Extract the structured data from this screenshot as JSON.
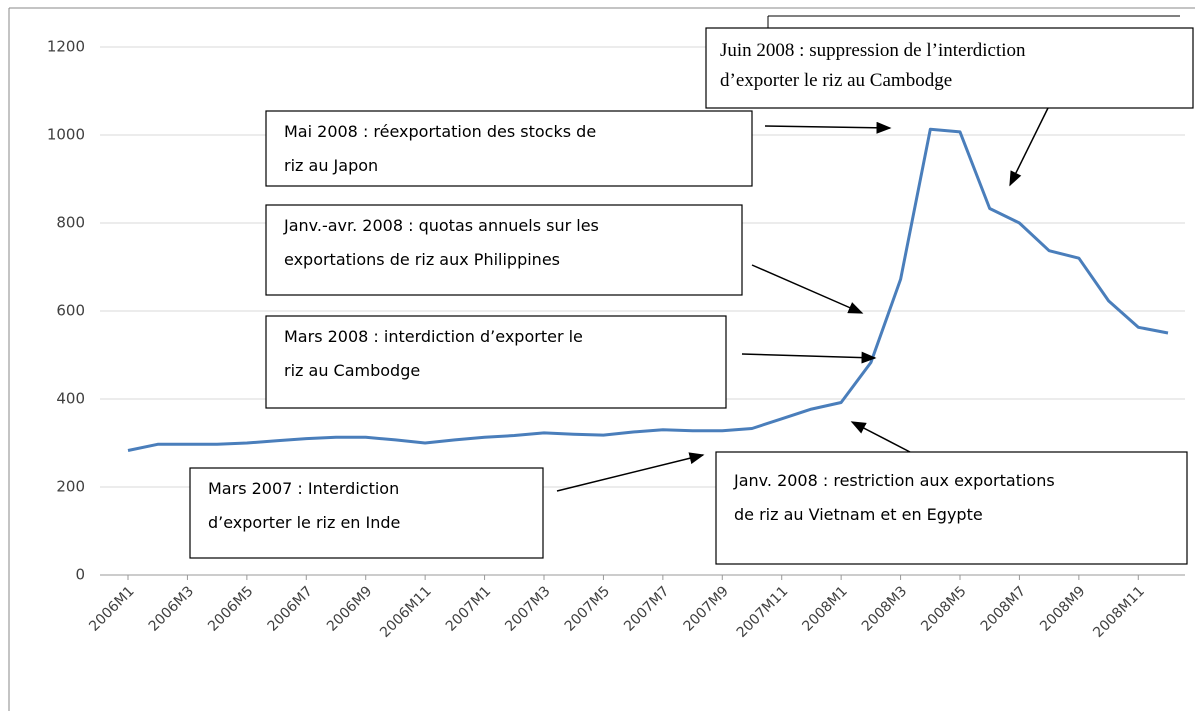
{
  "chart_data": {
    "type": "line",
    "categories": [
      "2006M1",
      null,
      "2006M3",
      null,
      "2006M5",
      null,
      "2006M7",
      null,
      "2006M9",
      null,
      "2006M11",
      null,
      "2007M1",
      null,
      "2007M3",
      null,
      "2007M5",
      null,
      "2007M7",
      null,
      "2007M9",
      null,
      "2007M11",
      null,
      "2008M1",
      null,
      "2008M3",
      null,
      "2008M5",
      null,
      "2008M7",
      null,
      "2008M9",
      null,
      "2008M11",
      null
    ],
    "series": [
      {
        "color": "#4a7ebb",
        "values": [
          283,
          297,
          297,
          297,
          300,
          305,
          310,
          313,
          313,
          307,
          300,
          307,
          313,
          317,
          323,
          320,
          318,
          325,
          330,
          328,
          328,
          333,
          355,
          377,
          392,
          483,
          672,
          1013,
          1007,
          833,
          800,
          737,
          720,
          623,
          563,
          550
        ]
      }
    ],
    "ylim": [
      0,
      1200
    ],
    "yticks": [
      0,
      200,
      400,
      600,
      800,
      1000,
      1200
    ],
    "grid": true,
    "annotations": [
      {
        "lines": [
          "Mai 2008 : réexportation des stocks de",
          "riz au Japon"
        ]
      },
      {
        "lines": [
          "Janv.-avr. 2008 : quotas annuels sur les",
          "exportations de riz aux Philippines"
        ]
      },
      {
        "lines": [
          "Mars 2008 : interdiction d’exporter le",
          "riz au Cambodge"
        ]
      },
      {
        "lines": [
          "Mars 2007 : Interdiction",
          "d’exporter le riz en Inde"
        ]
      },
      {
        "lines": [
          "Janv. 2008 : restriction aux exportations",
          "de riz au Vietnam et en Egypte"
        ]
      },
      {
        "lines": [
          "Juin 2008 : suppression de l’interdiction",
          "d’exporter le riz au Cambodge"
        ]
      }
    ]
  }
}
